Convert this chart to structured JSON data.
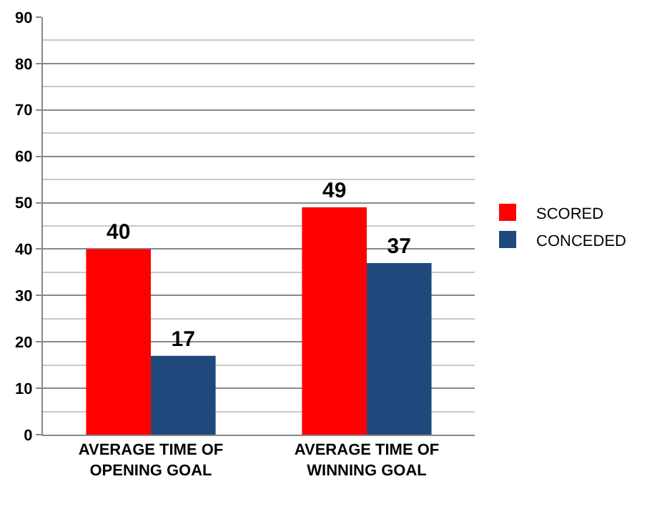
{
  "chart_data": {
    "type": "bar",
    "categories": [
      "AVERAGE TIME OF\nOPENING GOAL",
      "AVERAGE TIME OF\nWINNING GOAL"
    ],
    "series": [
      {
        "name": "SCORED",
        "color": "#ff0000",
        "values": [
          40,
          49
        ]
      },
      {
        "name": "CONCEDED",
        "color": "#1f497d",
        "values": [
          17,
          37
        ]
      }
    ],
    "ylim": [
      0,
      90
    ],
    "yticks": [
      0,
      10,
      20,
      30,
      40,
      50,
      60,
      70,
      80,
      90
    ],
    "grid": "y",
    "legend": "right",
    "data_labels": true
  }
}
